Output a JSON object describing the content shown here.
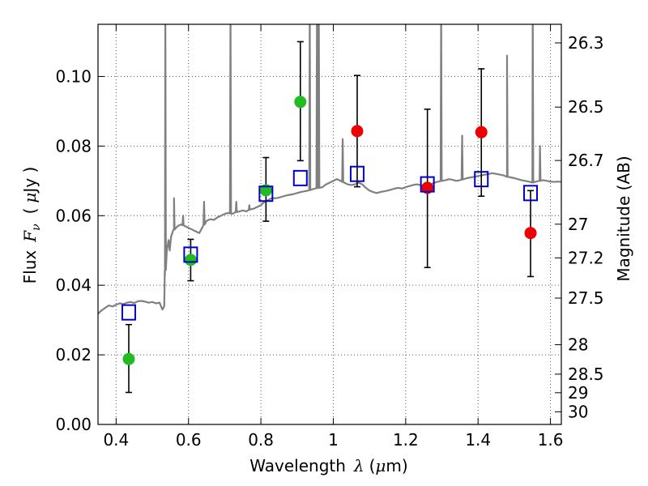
{
  "chart_data": {
    "type": "scatter",
    "title": "",
    "xlabel": "Wavelength  λ (μm)",
    "ylabel": "Flux  F_ν  ( μJy )",
    "ylabel_parts": {
      "pre": "Flux",
      "sym": "F",
      "sub": "ν",
      "unit_pre": "(",
      "mu": "μ",
      "unit_post": "Jy )"
    },
    "xlabel_parts": {
      "pre": "Wavelength",
      "sym": "λ",
      "unit_pre": "(",
      "mu": "μ",
      "unit_post": "m)"
    },
    "y2label": "Magnitude (AB)",
    "xlim": [
      0.35,
      1.63
    ],
    "ylim": [
      0.0,
      0.115
    ],
    "grid": true,
    "x_ticks": [
      {
        "value": 0.4,
        "label": "0.4"
      },
      {
        "value": 0.6,
        "label": "0.6"
      },
      {
        "value": 0.8,
        "label": "0.8"
      },
      {
        "value": 1.0,
        "label": "1"
      },
      {
        "value": 1.2,
        "label": "1.2"
      },
      {
        "value": 1.4,
        "label": "1.4"
      },
      {
        "value": 1.6,
        "label": "1.6"
      }
    ],
    "y_ticks": [
      {
        "value": 0.0,
        "label": "0.00"
      },
      {
        "value": 0.02,
        "label": "0.02"
      },
      {
        "value": 0.04,
        "label": "0.04"
      },
      {
        "value": 0.06,
        "label": "0.06"
      },
      {
        "value": 0.08,
        "label": "0.08"
      },
      {
        "value": 0.1,
        "label": "0.10"
      }
    ],
    "mag_ticks": [
      {
        "mag": 26.3,
        "label": "26.3"
      },
      {
        "mag": 26.5,
        "label": "26.5"
      },
      {
        "mag": 26.7,
        "label": "26.7"
      },
      {
        "mag": 27.0,
        "label": "27"
      },
      {
        "mag": 27.2,
        "label": "27.2"
      },
      {
        "mag": 27.5,
        "label": "27.5"
      },
      {
        "mag": 28.0,
        "label": "28"
      },
      {
        "mag": 28.5,
        "label": "28.5"
      },
      {
        "mag": 29.0,
        "label": "29"
      },
      {
        "mag": 30.0,
        "label": "30"
      }
    ],
    "colors": {
      "spectrum": "#808080",
      "optical_points": "#22bb22",
      "nir_points": "#ee0000",
      "model_squares": "#0000cc",
      "error_bars": "#000000",
      "grid": "#555555"
    },
    "series": [
      {
        "marker": "circle",
        "color": "#22bb22",
        "points": [
          {
            "x": 0.435,
            "y": 0.0188,
            "ylo": 0.0092,
            "yhi": 0.0287
          },
          {
            "x": 0.606,
            "y": 0.0473,
            "ylo": 0.0413,
            "yhi": 0.0532
          },
          {
            "x": 0.814,
            "y": 0.0673,
            "ylo": 0.0584,
            "yhi": 0.0767
          },
          {
            "x": 0.909,
            "y": 0.0927,
            "ylo": 0.0758,
            "yhi": 0.11
          }
        ]
      },
      {
        "marker": "circle",
        "color": "#ee0000",
        "points": [
          {
            "x": 1.066,
            "y": 0.0843,
            "ylo": 0.0683,
            "yhi": 0.1003
          },
          {
            "x": 1.26,
            "y": 0.068,
            "ylo": 0.0451,
            "yhi": 0.0906
          },
          {
            "x": 1.409,
            "y": 0.084,
            "ylo": 0.0656,
            "yhi": 0.1022
          },
          {
            "x": 1.545,
            "y": 0.055,
            "ylo": 0.0425,
            "yhi": 0.0672
          }
        ]
      },
      {
        "marker": "square",
        "color": "#0000cc",
        "points": [
          {
            "x": 0.435,
            "y": 0.0322
          },
          {
            "x": 0.606,
            "y": 0.0488
          },
          {
            "x": 0.814,
            "y": 0.0663
          },
          {
            "x": 0.909,
            "y": 0.0708
          },
          {
            "x": 1.066,
            "y": 0.072
          },
          {
            "x": 1.26,
            "y": 0.069
          },
          {
            "x": 1.409,
            "y": 0.0705
          },
          {
            "x": 1.545,
            "y": 0.0665
          }
        ]
      }
    ],
    "spectrum": [
      [
        0.35,
        0.0318
      ],
      [
        0.36,
        0.0328
      ],
      [
        0.37,
        0.0335
      ],
      [
        0.38,
        0.0342
      ],
      [
        0.39,
        0.0339
      ],
      [
        0.4,
        0.0344
      ],
      [
        0.41,
        0.0348
      ],
      [
        0.42,
        0.0346
      ],
      [
        0.43,
        0.035
      ],
      [
        0.44,
        0.0352
      ],
      [
        0.45,
        0.0349
      ],
      [
        0.46,
        0.0354
      ],
      [
        0.47,
        0.0355
      ],
      [
        0.48,
        0.0353
      ],
      [
        0.49,
        0.035
      ],
      [
        0.5,
        0.0352
      ],
      [
        0.51,
        0.0348
      ],
      [
        0.52,
        0.035
      ],
      [
        0.528,
        0.033
      ],
      [
        0.533,
        0.034
      ],
      [
        0.535,
        0.043
      ],
      [
        0.54,
        0.05
      ],
      [
        0.545,
        0.053
      ],
      [
        0.548,
        0.05
      ],
      [
        0.552,
        0.054
      ],
      [
        0.56,
        0.056
      ],
      [
        0.57,
        0.057
      ],
      [
        0.58,
        0.0575
      ],
      [
        0.59,
        0.057
      ],
      [
        0.6,
        0.0565
      ],
      [
        0.61,
        0.056
      ],
      [
        0.62,
        0.0555
      ],
      [
        0.63,
        0.055
      ],
      [
        0.64,
        0.057
      ],
      [
        0.65,
        0.0585
      ],
      [
        0.66,
        0.059
      ],
      [
        0.67,
        0.0588
      ],
      [
        0.68,
        0.0595
      ],
      [
        0.69,
        0.06
      ],
      [
        0.7,
        0.0605
      ],
      [
        0.71,
        0.0608
      ],
      [
        0.72,
        0.0605
      ],
      [
        0.73,
        0.061
      ],
      [
        0.74,
        0.0612
      ],
      [
        0.75,
        0.0615
      ],
      [
        0.76,
        0.0612
      ],
      [
        0.77,
        0.0618
      ],
      [
        0.78,
        0.062
      ],
      [
        0.79,
        0.0625
      ],
      [
        0.8,
        0.063
      ],
      [
        0.81,
        0.064
      ],
      [
        0.82,
        0.0645
      ],
      [
        0.83,
        0.065
      ],
      [
        0.84,
        0.065
      ],
      [
        0.85,
        0.0652
      ],
      [
        0.86,
        0.0655
      ],
      [
        0.87,
        0.0658
      ],
      [
        0.88,
        0.066
      ],
      [
        0.89,
        0.0662
      ],
      [
        0.9,
        0.0665
      ],
      [
        0.91,
        0.0668
      ],
      [
        0.92,
        0.067
      ],
      [
        0.93,
        0.0672
      ],
      [
        0.94,
        0.0675
      ],
      [
        0.95,
        0.0678
      ],
      [
        0.96,
        0.068
      ],
      [
        0.97,
        0.0682
      ],
      [
        0.98,
        0.069
      ],
      [
        0.99,
        0.0695
      ],
      [
        1.0,
        0.07
      ],
      [
        1.01,
        0.0705
      ],
      [
        1.02,
        0.07
      ],
      [
        1.03,
        0.0695
      ],
      [
        1.04,
        0.069
      ],
      [
        1.05,
        0.0688
      ],
      [
        1.06,
        0.069
      ],
      [
        1.07,
        0.0695
      ],
      [
        1.08,
        0.069
      ],
      [
        1.09,
        0.068
      ],
      [
        1.1,
        0.0672
      ],
      [
        1.11,
        0.0668
      ],
      [
        1.12,
        0.0665
      ],
      [
        1.13,
        0.0668
      ],
      [
        1.14,
        0.067
      ],
      [
        1.15,
        0.0672
      ],
      [
        1.16,
        0.0675
      ],
      [
        1.17,
        0.0678
      ],
      [
        1.18,
        0.068
      ],
      [
        1.19,
        0.0678
      ],
      [
        1.2,
        0.0682
      ],
      [
        1.21,
        0.0685
      ],
      [
        1.22,
        0.0688
      ],
      [
        1.23,
        0.069
      ],
      [
        1.24,
        0.0688
      ],
      [
        1.25,
        0.0685
      ],
      [
        1.26,
        0.0688
      ],
      [
        1.27,
        0.069
      ],
      [
        1.28,
        0.0695
      ],
      [
        1.29,
        0.0698
      ],
      [
        1.3,
        0.07
      ],
      [
        1.31,
        0.0702
      ],
      [
        1.32,
        0.0705
      ],
      [
        1.33,
        0.0703
      ],
      [
        1.34,
        0.07
      ],
      [
        1.35,
        0.0702
      ],
      [
        1.36,
        0.0705
      ],
      [
        1.37,
        0.0708
      ],
      [
        1.38,
        0.071
      ],
      [
        1.39,
        0.0712
      ],
      [
        1.4,
        0.0714
      ],
      [
        1.41,
        0.0716
      ],
      [
        1.42,
        0.0718
      ],
      [
        1.43,
        0.072
      ],
      [
        1.44,
        0.0722
      ],
      [
        1.45,
        0.072
      ],
      [
        1.46,
        0.0718
      ],
      [
        1.47,
        0.0716
      ],
      [
        1.48,
        0.0712
      ],
      [
        1.49,
        0.071
      ],
      [
        1.5,
        0.0708
      ],
      [
        1.51,
        0.0705
      ],
      [
        1.52,
        0.0702
      ],
      [
        1.53,
        0.07
      ],
      [
        1.54,
        0.0698
      ],
      [
        1.55,
        0.0695
      ],
      [
        1.56,
        0.0698
      ],
      [
        1.57,
        0.07
      ],
      [
        1.58,
        0.0702
      ],
      [
        1.59,
        0.07
      ],
      [
        1.6,
        0.0698
      ],
      [
        1.61,
        0.0697
      ],
      [
        1.62,
        0.0698
      ],
      [
        1.63,
        0.0697
      ]
    ],
    "emission_lines": [
      {
        "x": 0.536,
        "peak": 0.12
      },
      {
        "x": 0.56,
        "peak": 0.065
      },
      {
        "x": 0.585,
        "peak": 0.06
      },
      {
        "x": 0.643,
        "peak": 0.064
      },
      {
        "x": 0.716,
        "peak": 0.12
      },
      {
        "x": 0.732,
        "peak": 0.064
      },
      {
        "x": 0.768,
        "peak": 0.063
      },
      {
        "x": 0.935,
        "peak": 0.12
      },
      {
        "x": 0.955,
        "peak": 0.12
      },
      {
        "x": 0.96,
        "peak": 0.12
      },
      {
        "x": 1.026,
        "peak": 0.082
      },
      {
        "x": 1.298,
        "peak": 0.12
      },
      {
        "x": 1.356,
        "peak": 0.083
      },
      {
        "x": 1.48,
        "peak": 0.106
      },
      {
        "x": 1.551,
        "peak": 0.12
      },
      {
        "x": 1.571,
        "peak": 0.08
      }
    ]
  }
}
